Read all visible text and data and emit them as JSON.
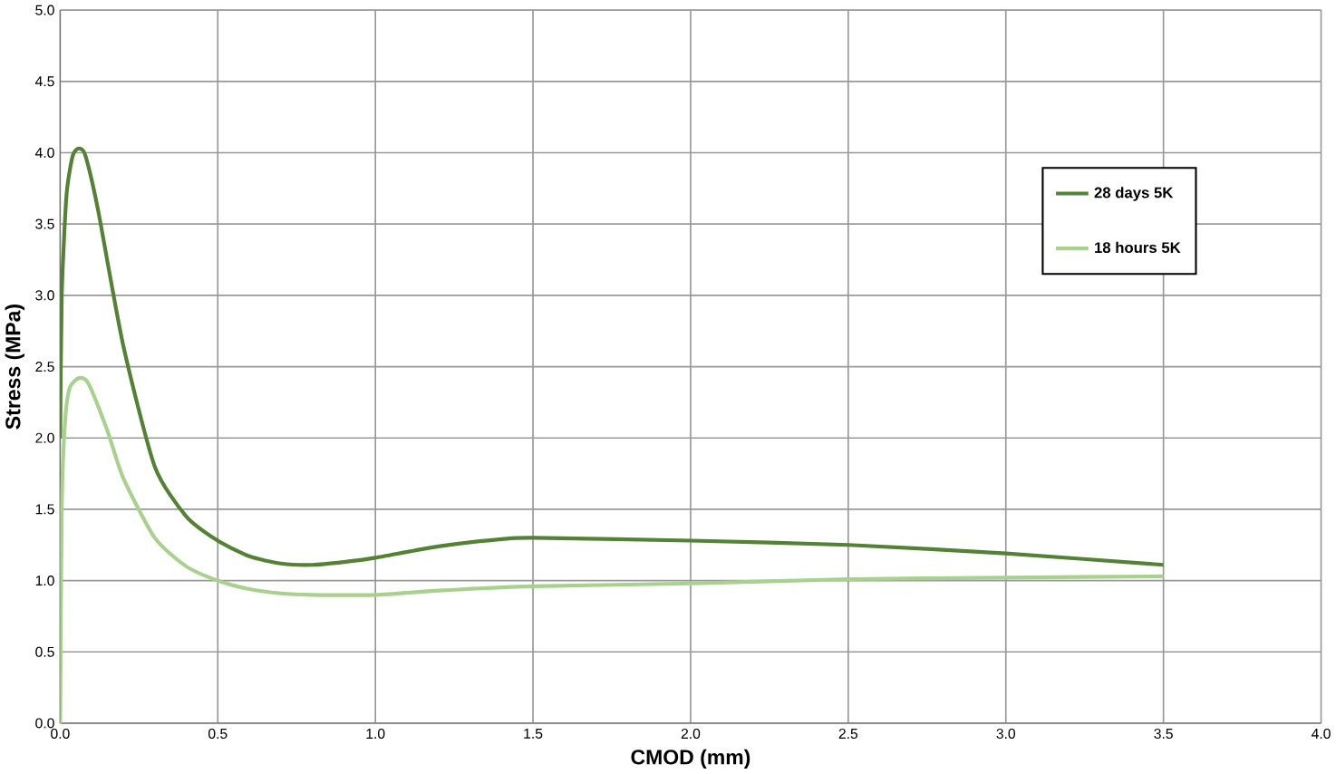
{
  "chart_data": {
    "type": "line",
    "xlabel": "CMOD (mm)",
    "ylabel": "Stress (MPa)",
    "xlim": [
      0,
      4
    ],
    "ylim": [
      0,
      5
    ],
    "xticks": [
      {
        "value": 0,
        "label": "0.0"
      },
      {
        "value": 0.5,
        "label": "0.5"
      },
      {
        "value": 1,
        "label": "1.0"
      },
      {
        "value": 1.5,
        "label": "1.5"
      },
      {
        "value": 2,
        "label": "2.0"
      },
      {
        "value": 2.5,
        "label": "2.5"
      },
      {
        "value": 3,
        "label": "3.0"
      },
      {
        "value": 3.5,
        "label": "3.5"
      },
      {
        "value": 4,
        "label": "4.0"
      }
    ],
    "yticks": [
      {
        "value": 0,
        "label": "0.0"
      },
      {
        "value": 0.5,
        "label": "0.5"
      },
      {
        "value": 1,
        "label": "1.0"
      },
      {
        "value": 1.5,
        "label": "1.5"
      },
      {
        "value": 2,
        "label": "2.0"
      },
      {
        "value": 2.5,
        "label": "2.5"
      },
      {
        "value": 3,
        "label": "3.0"
      },
      {
        "value": 3.5,
        "label": "3.5"
      },
      {
        "value": 4,
        "label": "4.0"
      },
      {
        "value": 4.5,
        "label": "4.5"
      },
      {
        "value": 5,
        "label": "5.0"
      }
    ],
    "grid": true,
    "legend": "right",
    "series": [
      {
        "name": "28 days 5K",
        "color": "#548235",
        "x": [
          0,
          0.005,
          0.02,
          0.04,
          0.06,
          0.08,
          0.12,
          0.2,
          0.3,
          0.4,
          0.5,
          0.6,
          0.7,
          0.8,
          0.9,
          1.0,
          1.2,
          1.4,
          1.5,
          2.0,
          2.5,
          3.0,
          3.5
        ],
        "values": [
          2.0,
          3.0,
          3.7,
          3.98,
          4.03,
          3.98,
          3.6,
          2.65,
          1.8,
          1.45,
          1.28,
          1.17,
          1.12,
          1.11,
          1.13,
          1.16,
          1.24,
          1.29,
          1.3,
          1.28,
          1.25,
          1.19,
          1.11
        ]
      },
      {
        "name": "18 hours 5K",
        "color": "#a9d18e",
        "x": [
          0,
          0.005,
          0.015,
          0.03,
          0.06,
          0.09,
          0.15,
          0.2,
          0.3,
          0.4,
          0.5,
          0.6,
          0.7,
          0.8,
          1.0,
          1.2,
          1.5,
          2.0,
          2.5,
          3.0,
          3.5
        ],
        "values": [
          0,
          1.5,
          2.1,
          2.35,
          2.42,
          2.38,
          2.05,
          1.72,
          1.3,
          1.1,
          1.0,
          0.94,
          0.91,
          0.9,
          0.9,
          0.93,
          0.96,
          0.98,
          1.01,
          1.02,
          1.03
        ]
      }
    ]
  }
}
